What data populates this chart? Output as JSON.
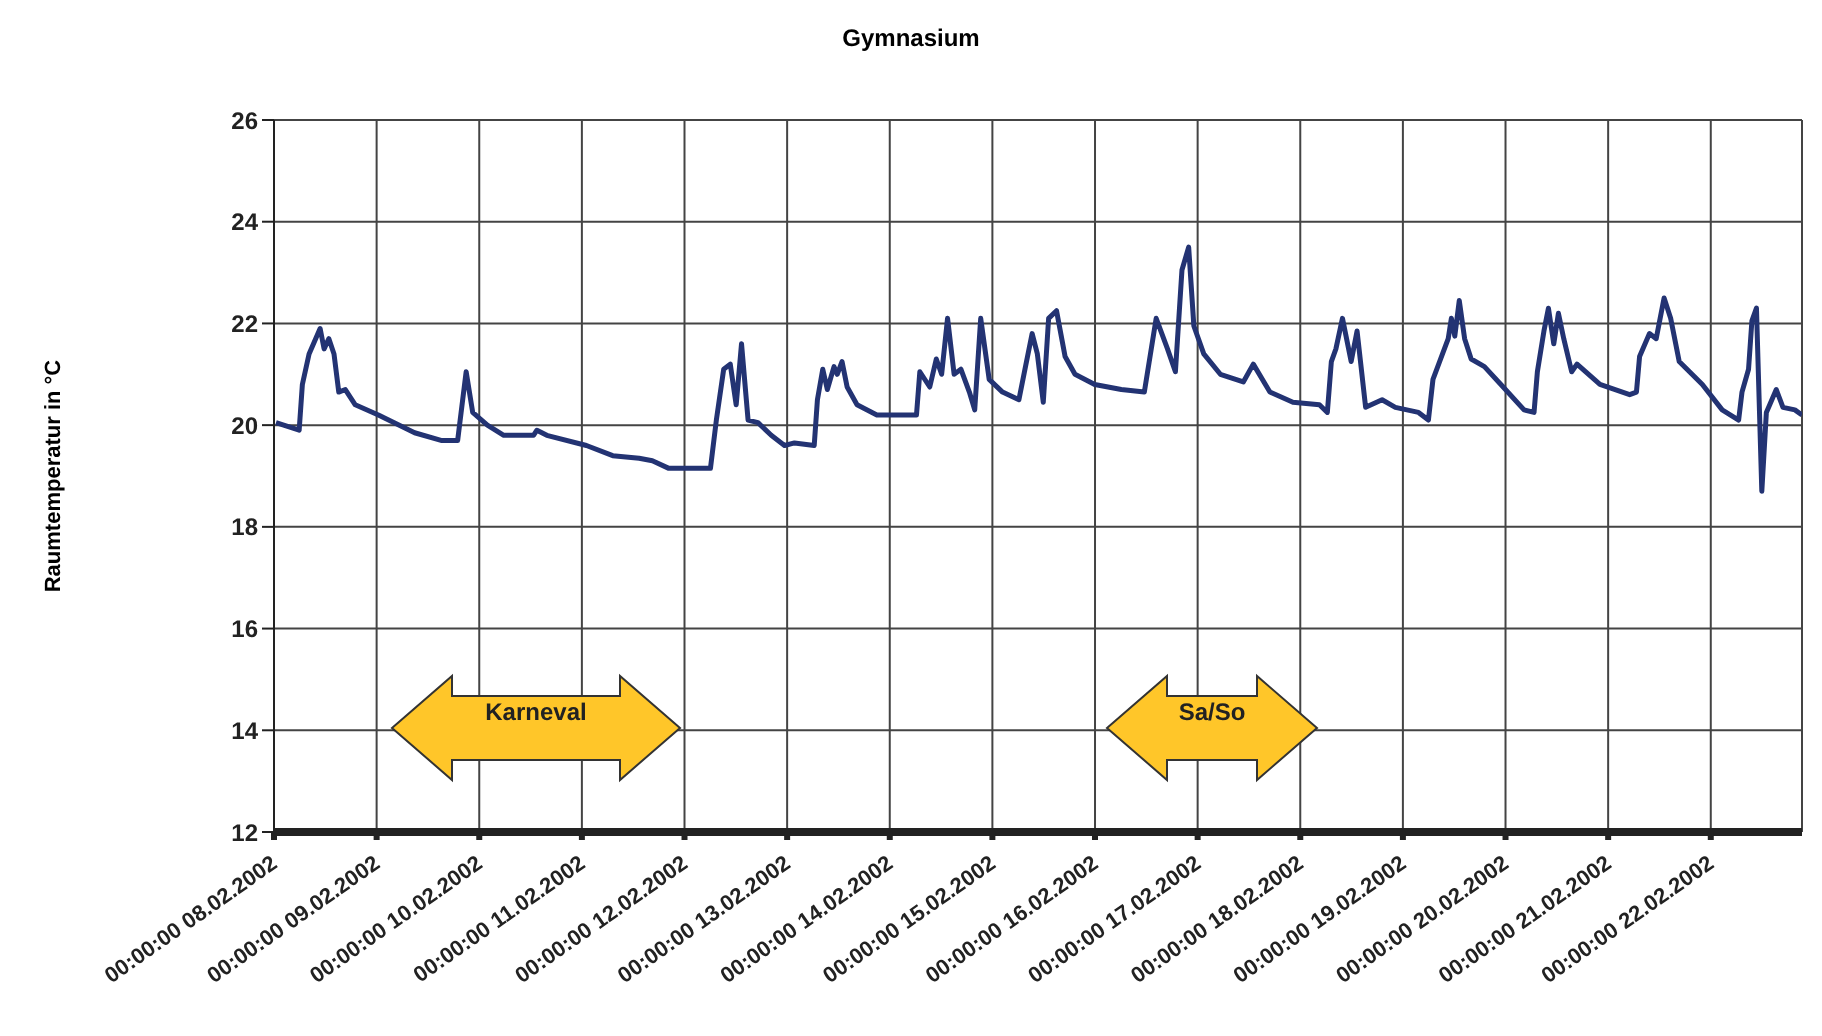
{
  "chart_data": {
    "type": "line",
    "title": "Gymnasium",
    "ylabel": "Raumtemperatur in °C",
    "x": [
      "2002-02-08T00:28",
      "2002-02-08T05:53",
      "2002-02-08T06:38",
      "2002-02-08T08:12",
      "2002-02-08T10:47",
      "2002-02-08T11:43",
      "2002-02-08T12:50",
      "2002-02-08T14:02",
      "2002-02-08T15:09",
      "2002-02-08T16:41",
      "2002-02-08T19:00",
      "2002-02-09T00:25",
      "2002-02-09T08:53",
      "2002-02-09T15:04",
      "2002-02-09T18:57",
      "2002-02-09T20:56",
      "2002-02-09T22:28",
      "2002-02-10T01:54",
      "2002-02-10T05:44",
      "2002-02-10T12:41",
      "2002-02-10T13:29",
      "2002-02-10T15:48",
      "2002-02-11T01:04",
      "2002-02-11T07:13",
      "2002-02-11T13:23",
      "2002-02-11T16:29",
      "2002-02-11T20:20",
      "2002-02-12T06:04",
      "2002-02-12T07:27",
      "2002-02-12T09:10",
      "2002-02-12T10:42",
      "2002-02-12T12:05",
      "2002-02-12T13:20",
      "2002-02-12T14:52",
      "2002-02-12T17:11",
      "2002-02-12T20:17",
      "2002-02-12T23:23",
      "2002-02-13T01:43",
      "2002-02-13T06:20",
      "2002-02-13T07:05",
      "2002-02-13T08:20",
      "2002-02-13T09:24",
      "2002-02-13T10:58",
      "2002-02-13T11:43",
      "2002-02-13T12:50",
      "2002-02-13T14:02",
      "2002-02-13T16:21",
      "2002-02-13T20:59",
      "2002-02-14T06:15",
      "2002-02-14T07:02",
      "2002-02-14T09:21",
      "2002-02-14T10:53",
      "2002-02-14T12:08",
      "2002-02-14T13:31",
      "2002-02-14T15:03",
      "2002-02-14T16:38",
      "2002-02-14T18:37",
      "2002-02-14T19:52",
      "2002-02-14T21:16",
      "2002-02-14T23:15",
      "2002-02-15T02:22",
      "2002-02-15T06:12",
      "2002-02-15T07:44",
      "2002-02-15T09:18",
      "2002-02-15T10:31",
      "2002-02-15T11:54",
      "2002-02-15T13:09",
      "2002-02-15T15:00",
      "2002-02-15T17:00",
      "2002-02-15T19:19",
      "2002-02-15T23:56",
      "2002-02-16T06:09",
      "2002-02-16T11:32",
      "2002-02-16T14:18",
      "2002-02-16T16:57",
      "2002-02-16T18:48",
      "2002-02-16T20:20",
      "2002-02-16T21:54",
      "2002-02-16T23:07",
      "2002-02-17T01:26",
      "2002-02-17T05:19",
      "2002-02-17T10:41",
      "2002-02-17T13:01",
      "2002-02-17T16:54",
      "2002-02-17T22:17",
      "2002-02-18T04:29",
      "2002-02-18T06:20",
      "2002-02-18T07:16",
      "2002-02-18T08:20",
      "2002-02-18T09:52",
      "2002-02-18T11:54",
      "2002-02-18T13:17",
      "2002-02-18T15:17",
      "2002-02-18T19:08",
      "2002-02-18T22:14",
      "2002-02-19T03:39",
      "2002-02-19T05:58",
      "2002-02-19T07:02",
      "2002-02-19T10:36",
      "2002-02-19T11:20",
      "2002-02-19T12:08",
      "2002-02-19T13:11",
      "2002-02-19T14:26",
      "2002-02-19T15:58",
      "2002-02-19T19:04",
      "2002-02-19T22:55",
      "2002-02-20T04:20",
      "2002-02-20T06:40",
      "2002-02-20T07:27",
      "2002-02-20T08:59",
      "2002-02-20T10:02",
      "2002-02-20T11:17",
      "2002-02-20T12:22",
      "2002-02-20T13:37",
      "2002-02-20T15:28",
      "2002-02-20T16:43",
      "2002-02-20T22:05",
      "2002-02-21T05:02",
      "2002-02-21T06:37",
      "2002-02-21T07:21",
      "2002-02-21T09:40",
      "2002-02-21T11:14",
      "2002-02-21T13:05",
      "2002-02-21T14:37",
      "2002-02-21T16:37",
      "2002-02-21T22:02",
      "2002-02-22T02:40",
      "2002-02-22T06:31",
      "2002-02-22T07:18",
      "2002-02-22T08:50",
      "2002-02-22T09:37",
      "2002-02-22T10:41",
      "2002-02-22T11:56",
      "2002-02-22T13:00",
      "2002-02-22T13:47",
      "2002-02-22T15:19",
      "2002-02-22T16:53",
      "2002-02-22T19:40",
      "2002-02-22T21:20"
    ],
    "series": [
      {
        "color": "#233373",
        "values": [
          20.05,
          19.9,
          20.8,
          21.4,
          21.9,
          21.5,
          21.7,
          21.4,
          20.65,
          20.7,
          20.4,
          20.2,
          19.85,
          19.7,
          19.7,
          21.05,
          20.25,
          20.0,
          19.8,
          19.8,
          19.9,
          19.8,
          19.6,
          19.4,
          19.35,
          19.3,
          19.15,
          19.15,
          20.1,
          21.1,
          21.2,
          20.4,
          21.6,
          20.1,
          20.05,
          19.8,
          19.6,
          19.65,
          19.6,
          20.5,
          21.1,
          20.7,
          21.15,
          21.0,
          21.25,
          20.75,
          20.4,
          20.2,
          20.2,
          21.05,
          20.75,
          21.3,
          21.0,
          22.1,
          21.0,
          21.1,
          20.65,
          20.3,
          22.1,
          20.9,
          20.65,
          20.5,
          21.15,
          21.8,
          21.4,
          20.45,
          22.1,
          22.25,
          21.35,
          21.0,
          20.8,
          20.7,
          20.65,
          22.1,
          21.5,
          21.05,
          23.05,
          23.5,
          21.95,
          21.4,
          21.0,
          20.85,
          21.2,
          20.65,
          20.45,
          20.4,
          20.25,
          21.25,
          21.5,
          22.1,
          21.25,
          21.85,
          20.35,
          20.5,
          20.35,
          20.25,
          20.1,
          20.9,
          21.7,
          22.1,
          21.75,
          22.45,
          21.7,
          21.3,
          21.15,
          20.8,
          20.3,
          20.25,
          21.05,
          21.85,
          22.3,
          21.6,
          22.2,
          21.7,
          21.05,
          21.2,
          20.8,
          20.6,
          20.65,
          21.35,
          21.8,
          21.7,
          22.5,
          22.1,
          21.25,
          20.8,
          20.3,
          20.1,
          20.65,
          21.1,
          22.05,
          22.3,
          18.7,
          20.25,
          20.4,
          20.7,
          20.35,
          20.3,
          20.2
        ]
      }
    ],
    "xlim": [
      "2002-02-08",
      "2002-02-22T21:20"
    ],
    "xticks": [
      {
        "value": "2002-02-08",
        "label": "00:00:00 08.02.2002"
      },
      {
        "value": "2002-02-09",
        "label": "00:00:00 09.02.2002"
      },
      {
        "value": "2002-02-10",
        "label": "00:00:00 10.02.2002"
      },
      {
        "value": "2002-02-11",
        "label": "00:00:00 11.02.2002"
      },
      {
        "value": "2002-02-12",
        "label": "00:00:00 12.02.2002"
      },
      {
        "value": "2002-02-13",
        "label": "00:00:00 13.02.2002"
      },
      {
        "value": "2002-02-14",
        "label": "00:00:00 14.02.2002"
      },
      {
        "value": "2002-02-15",
        "label": "00:00:00 15.02.2002"
      },
      {
        "value": "2002-02-16",
        "label": "00:00:00 16.02.2002"
      },
      {
        "value": "2002-02-17",
        "label": "00:00:00 17.02.2002"
      },
      {
        "value": "2002-02-18",
        "label": "00:00:00 18.02.2002"
      },
      {
        "value": "2002-02-19",
        "label": "00:00:00 19.02.2002"
      },
      {
        "value": "2002-02-20",
        "label": "00:00:00 20.02.2002"
      },
      {
        "value": "2002-02-21",
        "label": "00:00:00 21.02.2002"
      },
      {
        "value": "2002-02-22",
        "label": "00:00:00 22.02.2002"
      }
    ],
    "ylim": [
      12,
      26
    ],
    "yticks": [
      12,
      14,
      16,
      18,
      20,
      22,
      24,
      26
    ],
    "grid": true,
    "marker": "none",
    "line_style": "solid",
    "legend": false,
    "annotations": [
      "Karneval",
      "Sa/So"
    ]
  }
}
